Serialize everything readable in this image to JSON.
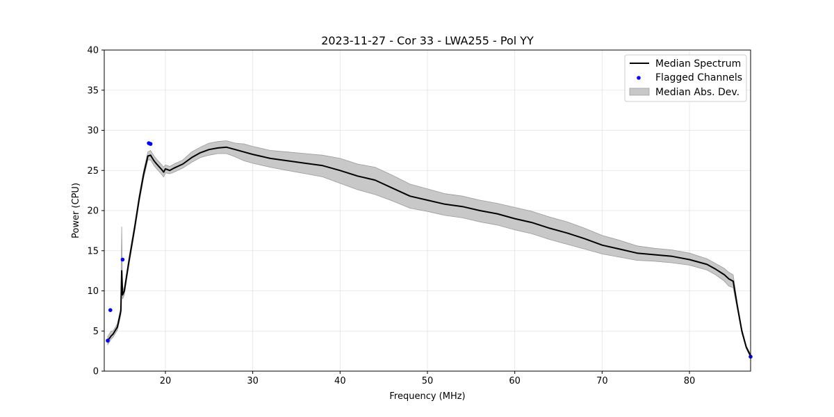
{
  "chart_data": {
    "type": "line",
    "title": "2023-11-27 - Cor 33 - LWA255 - Pol YY",
    "xlabel": "Frequency (MHz)",
    "ylabel": "Power (CPU)",
    "xlim": [
      13.0,
      87.0
    ],
    "ylim": [
      0,
      40
    ],
    "xticks": [
      20,
      30,
      40,
      50,
      60,
      70,
      80
    ],
    "yticks": [
      0,
      5,
      10,
      15,
      20,
      25,
      30,
      35,
      40
    ],
    "grid": true,
    "legend_position": "top-right",
    "legend": [
      {
        "label": "Median Spectrum",
        "kind": "line",
        "color": "#000000"
      },
      {
        "label": "Flagged Channels",
        "kind": "marker",
        "color": "#0000ff"
      },
      {
        "label": "Median Abs. Dev.",
        "kind": "band",
        "color": "#c8c8c8"
      }
    ],
    "median_spectrum": {
      "x": [
        13.4,
        13.8,
        14.0,
        14.5,
        14.9,
        15.0,
        15.1,
        15.3,
        15.8,
        16.5,
        17.0,
        17.5,
        18.0,
        18.3,
        18.7,
        19.0,
        19.5,
        19.8,
        20.0,
        20.5,
        21.0,
        22.0,
        23.0,
        24.0,
        25.0,
        26.0,
        27.0,
        28.0,
        29.0,
        30.0,
        32.0,
        34.0,
        36.0,
        38.0,
        40.0,
        42.0,
        44.0,
        46.0,
        48.0,
        50.0,
        52.0,
        54.0,
        56.0,
        58.0,
        60.0,
        62.0,
        64.0,
        66.0,
        68.0,
        70.0,
        72.0,
        74.0,
        76.0,
        78.0,
        80.0,
        82.0,
        83.0,
        84.0,
        84.5,
        85.0,
        85.5,
        86.0,
        86.5,
        87.0
      ],
      "y": [
        3.8,
        4.4,
        4.6,
        5.5,
        7.5,
        12.5,
        9.5,
        10.0,
        13.5,
        18.0,
        21.5,
        24.5,
        26.8,
        26.9,
        26.2,
        25.8,
        25.2,
        24.8,
        25.2,
        25.0,
        25.3,
        25.8,
        26.6,
        27.2,
        27.6,
        27.8,
        27.9,
        27.6,
        27.3,
        27.0,
        26.5,
        26.2,
        25.9,
        25.6,
        25.0,
        24.3,
        23.8,
        22.8,
        21.8,
        21.3,
        20.8,
        20.5,
        20.0,
        19.6,
        19.0,
        18.5,
        17.8,
        17.2,
        16.5,
        15.7,
        15.2,
        14.7,
        14.5,
        14.3,
        13.9,
        13.3,
        12.7,
        12.0,
        11.5,
        11.2,
        8.0,
        5.0,
        3.0,
        1.9
      ]
    },
    "mad_band": {
      "x": [
        13.4,
        13.8,
        14.0,
        14.5,
        14.9,
        15.0,
        15.1,
        15.3,
        15.8,
        16.5,
        17.0,
        17.5,
        18.0,
        18.3,
        18.7,
        19.0,
        19.5,
        19.8,
        20.0,
        20.5,
        21.0,
        22.0,
        23.0,
        24.0,
        25.0,
        26.0,
        27.0,
        28.0,
        29.0,
        30.0,
        32.0,
        34.0,
        36.0,
        38.0,
        40.0,
        42.0,
        44.0,
        46.0,
        48.0,
        50.0,
        52.0,
        54.0,
        56.0,
        58.0,
        60.0,
        62.0,
        64.0,
        66.0,
        68.0,
        70.0,
        72.0,
        74.0,
        76.0,
        78.0,
        80.0,
        82.0,
        83.0,
        84.0,
        84.5,
        85.0,
        85.5,
        86.0,
        86.5,
        87.0
      ],
      "lower": [
        3.3,
        4.0,
        4.2,
        5.1,
        7.0,
        10.5,
        9.0,
        9.5,
        13.0,
        17.5,
        21.0,
        24.0,
        26.3,
        26.3,
        25.6,
        25.2,
        24.6,
        24.2,
        24.7,
        24.6,
        24.8,
        25.3,
        26.0,
        26.6,
        26.9,
        27.1,
        27.1,
        26.7,
        26.2,
        25.9,
        25.4,
        25.0,
        24.6,
        24.2,
        23.4,
        22.6,
        22.0,
        21.2,
        20.3,
        19.9,
        19.4,
        19.1,
        18.6,
        18.2,
        17.6,
        17.1,
        16.4,
        15.8,
        15.2,
        14.6,
        14.2,
        13.8,
        13.7,
        13.5,
        13.2,
        12.6,
        12.0,
        11.2,
        10.6,
        10.4,
        7.6,
        4.7,
        2.8,
        1.7
      ],
      "upper": [
        4.3,
        5.0,
        5.0,
        5.9,
        8.0,
        18.0,
        10.0,
        10.5,
        14.0,
        18.5,
        22.0,
        25.0,
        27.3,
        27.5,
        26.8,
        26.4,
        25.8,
        25.4,
        25.7,
        25.5,
        25.8,
        26.3,
        27.3,
        27.9,
        28.4,
        28.6,
        28.7,
        28.4,
        28.3,
        28.0,
        27.5,
        27.3,
        27.1,
        26.9,
        26.5,
        25.8,
        25.4,
        24.4,
        23.3,
        22.7,
        22.1,
        21.8,
        21.3,
        20.9,
        20.4,
        19.9,
        19.2,
        18.6,
        17.8,
        16.9,
        16.3,
        15.6,
        15.3,
        15.1,
        14.7,
        14.0,
        13.4,
        12.8,
        12.3,
        12.0,
        8.4,
        5.3,
        3.2,
        2.1
      ]
    },
    "flagged_channels": {
      "x": [
        13.4,
        13.7,
        15.1,
        18.1,
        18.3,
        87.0
      ],
      "y": [
        3.8,
        7.6,
        13.9,
        28.4,
        28.3,
        1.8
      ]
    }
  }
}
